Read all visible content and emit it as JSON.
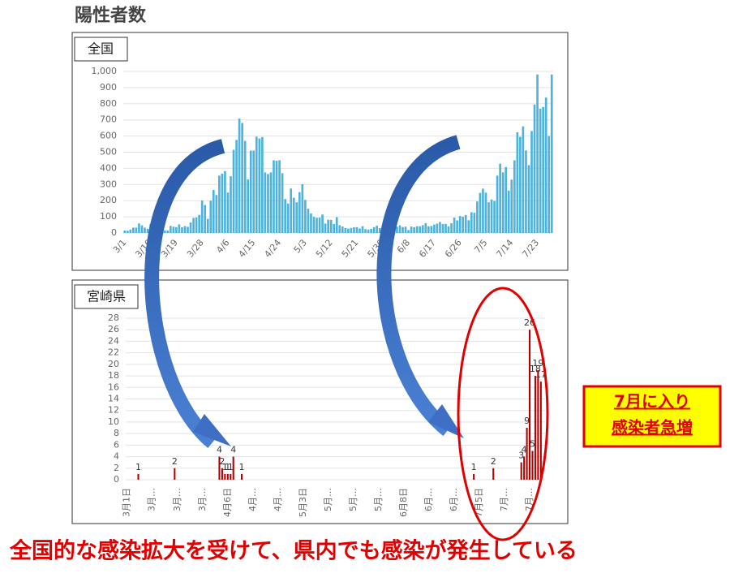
{
  "header": {
    "title": "陽性者数"
  },
  "chart_data": [
    {
      "type": "bar",
      "title": "全国",
      "color": "#4db3dc",
      "grid": true,
      "ylim": [
        0,
        1000
      ],
      "yticks": [
        0,
        100,
        200,
        300,
        400,
        500,
        600,
        700,
        800,
        900,
        {
          "value": 1000,
          "label": "1,000"
        }
      ],
      "categories": [
        "3/1",
        null,
        null,
        null,
        null,
        null,
        null,
        null,
        null,
        "3/10",
        null,
        null,
        null,
        null,
        null,
        null,
        null,
        null,
        "3/19",
        null,
        null,
        null,
        null,
        null,
        null,
        null,
        null,
        "3/28",
        null,
        null,
        null,
        null,
        null,
        null,
        null,
        null,
        "4/6",
        null,
        null,
        null,
        null,
        null,
        null,
        null,
        null,
        "4/15",
        null,
        null,
        null,
        null,
        null,
        null,
        null,
        null,
        "4/24",
        null,
        null,
        null,
        null,
        null,
        null,
        null,
        null,
        "5/3",
        null,
        null,
        null,
        null,
        null,
        null,
        null,
        null,
        "5/12",
        null,
        null,
        null,
        null,
        null,
        null,
        null,
        null,
        "5/21",
        null,
        null,
        null,
        null,
        null,
        null,
        null,
        null,
        "5/30",
        null,
        null,
        null,
        null,
        null,
        null,
        null,
        null,
        "6/8",
        null,
        null,
        null,
        null,
        null,
        null,
        null,
        null,
        "6/17",
        null,
        null,
        null,
        null,
        null,
        null,
        null,
        null,
        "6/26",
        null,
        null,
        null,
        null,
        null,
        null,
        null,
        null,
        "7/5",
        null,
        null,
        null,
        null,
        null,
        null,
        null,
        null,
        "7/14",
        null,
        null,
        null,
        null,
        null,
        null,
        null,
        null,
        "7/23",
        null,
        null,
        null,
        null,
        null
      ],
      "values": [
        15,
        14,
        21,
        33,
        33,
        59,
        47,
        33,
        26,
        54,
        52,
        55,
        41,
        64,
        15,
        15,
        44,
        39,
        36,
        53,
        35,
        43,
        38,
        65,
        93,
        96,
        112,
        201,
        173,
        88,
        200,
        266,
        235,
        355,
        367,
        383,
        250,
        351,
        515,
        576,
        708,
        681,
        570,
        332,
        510,
        510,
        596,
        585,
        594,
        375,
        365,
        375,
        450,
        447,
        450,
        370,
        210,
        182,
        275,
        218,
        190,
        253,
        302,
        205,
        150,
        121,
        100,
        94,
        95,
        114,
        58,
        82,
        81,
        55,
        98,
        48,
        40,
        31,
        27,
        31,
        35,
        36,
        28,
        42,
        24,
        21,
        26,
        36,
        45,
        30,
        40,
        35,
        26,
        51,
        40,
        39,
        47,
        37,
        39,
        18,
        40,
        36,
        42,
        41,
        48,
        61,
        41,
        43,
        52,
        58,
        68,
        55,
        56,
        40,
        60,
        95,
        78,
        105,
        101,
        111,
        79,
        128,
        125,
        195,
        248,
        274,
        250,
        190,
        207,
        198,
        355,
        429,
        375,
        408,
        262,
        330,
        450,
        623,
        595,
        660,
        511,
        420,
        631,
        795,
        981,
        769,
        780,
        838,
        600,
        981
      ]
    },
    {
      "type": "bar",
      "title": "宮崎県",
      "color": "#b00000",
      "grid": true,
      "ylim": [
        0,
        28
      ],
      "yticks": [
        0,
        2,
        4,
        6,
        8,
        10,
        12,
        14,
        16,
        18,
        20,
        22,
        24,
        26,
        28
      ],
      "categories": [
        "3月1日",
        null,
        null,
        null,
        null,
        null,
        null,
        null,
        null,
        "3月…",
        null,
        null,
        null,
        null,
        null,
        null,
        null,
        null,
        "3月…",
        null,
        null,
        null,
        null,
        null,
        null,
        null,
        null,
        "3月…",
        null,
        null,
        null,
        null,
        null,
        null,
        null,
        null,
        "4月6日",
        null,
        null,
        null,
        null,
        null,
        null,
        null,
        null,
        "4月…",
        null,
        null,
        null,
        null,
        null,
        null,
        null,
        null,
        "4月…",
        null,
        null,
        null,
        null,
        null,
        null,
        null,
        null,
        "5月3日",
        null,
        null,
        null,
        null,
        null,
        null,
        null,
        null,
        "5月…",
        null,
        null,
        null,
        null,
        null,
        null,
        null,
        null,
        "5月…",
        null,
        null,
        null,
        null,
        null,
        null,
        null,
        null,
        "5月…",
        null,
        null,
        null,
        null,
        null,
        null,
        null,
        null,
        "6月8日",
        null,
        null,
        null,
        null,
        null,
        null,
        null,
        null,
        "6月…",
        null,
        null,
        null,
        null,
        null,
        null,
        null,
        null,
        "6月…",
        null,
        null,
        null,
        null,
        null,
        null,
        null,
        null,
        "7月5日",
        null,
        null,
        null,
        null,
        null,
        null,
        null,
        null,
        "7月…",
        null,
        null,
        null,
        null,
        null,
        null,
        null,
        null,
        "7月…",
        null,
        null,
        null,
        null,
        null
      ],
      "values": [
        0,
        0,
        0,
        0,
        1,
        0,
        0,
        0,
        0,
        0,
        0,
        0,
        0,
        0,
        0,
        0,
        0,
        2,
        0,
        0,
        0,
        0,
        0,
        0,
        0,
        0,
        0,
        0,
        0,
        0,
        0,
        0,
        0,
        4,
        2,
        1,
        1,
        1,
        4,
        0,
        0,
        1,
        0,
        0,
        0,
        0,
        0,
        0,
        0,
        0,
        0,
        0,
        0,
        0,
        0,
        0,
        0,
        0,
        0,
        0,
        0,
        0,
        0,
        0,
        0,
        0,
        0,
        0,
        0,
        0,
        0,
        0,
        0,
        0,
        0,
        0,
        0,
        0,
        0,
        0,
        0,
        0,
        0,
        0,
        0,
        0,
        0,
        0,
        0,
        0,
        0,
        0,
        0,
        0,
        0,
        0,
        0,
        0,
        0,
        0,
        0,
        0,
        0,
        0,
        0,
        0,
        0,
        0,
        0,
        0,
        0,
        0,
        0,
        0,
        0,
        0,
        0,
        0,
        0,
        0,
        0,
        0,
        0,
        0,
        1,
        0,
        0,
        0,
        0,
        0,
        0,
        2,
        0,
        0,
        0,
        0,
        0,
        0,
        0,
        0,
        0,
        3,
        4,
        9,
        26,
        5,
        18,
        19,
        17,
        0
      ]
    }
  ],
  "callout": {
    "lines": [
      "7月に入り",
      "感染者急増"
    ]
  },
  "caption": "全国的な感染拡大を受けて、県内でも感染が発生している"
}
